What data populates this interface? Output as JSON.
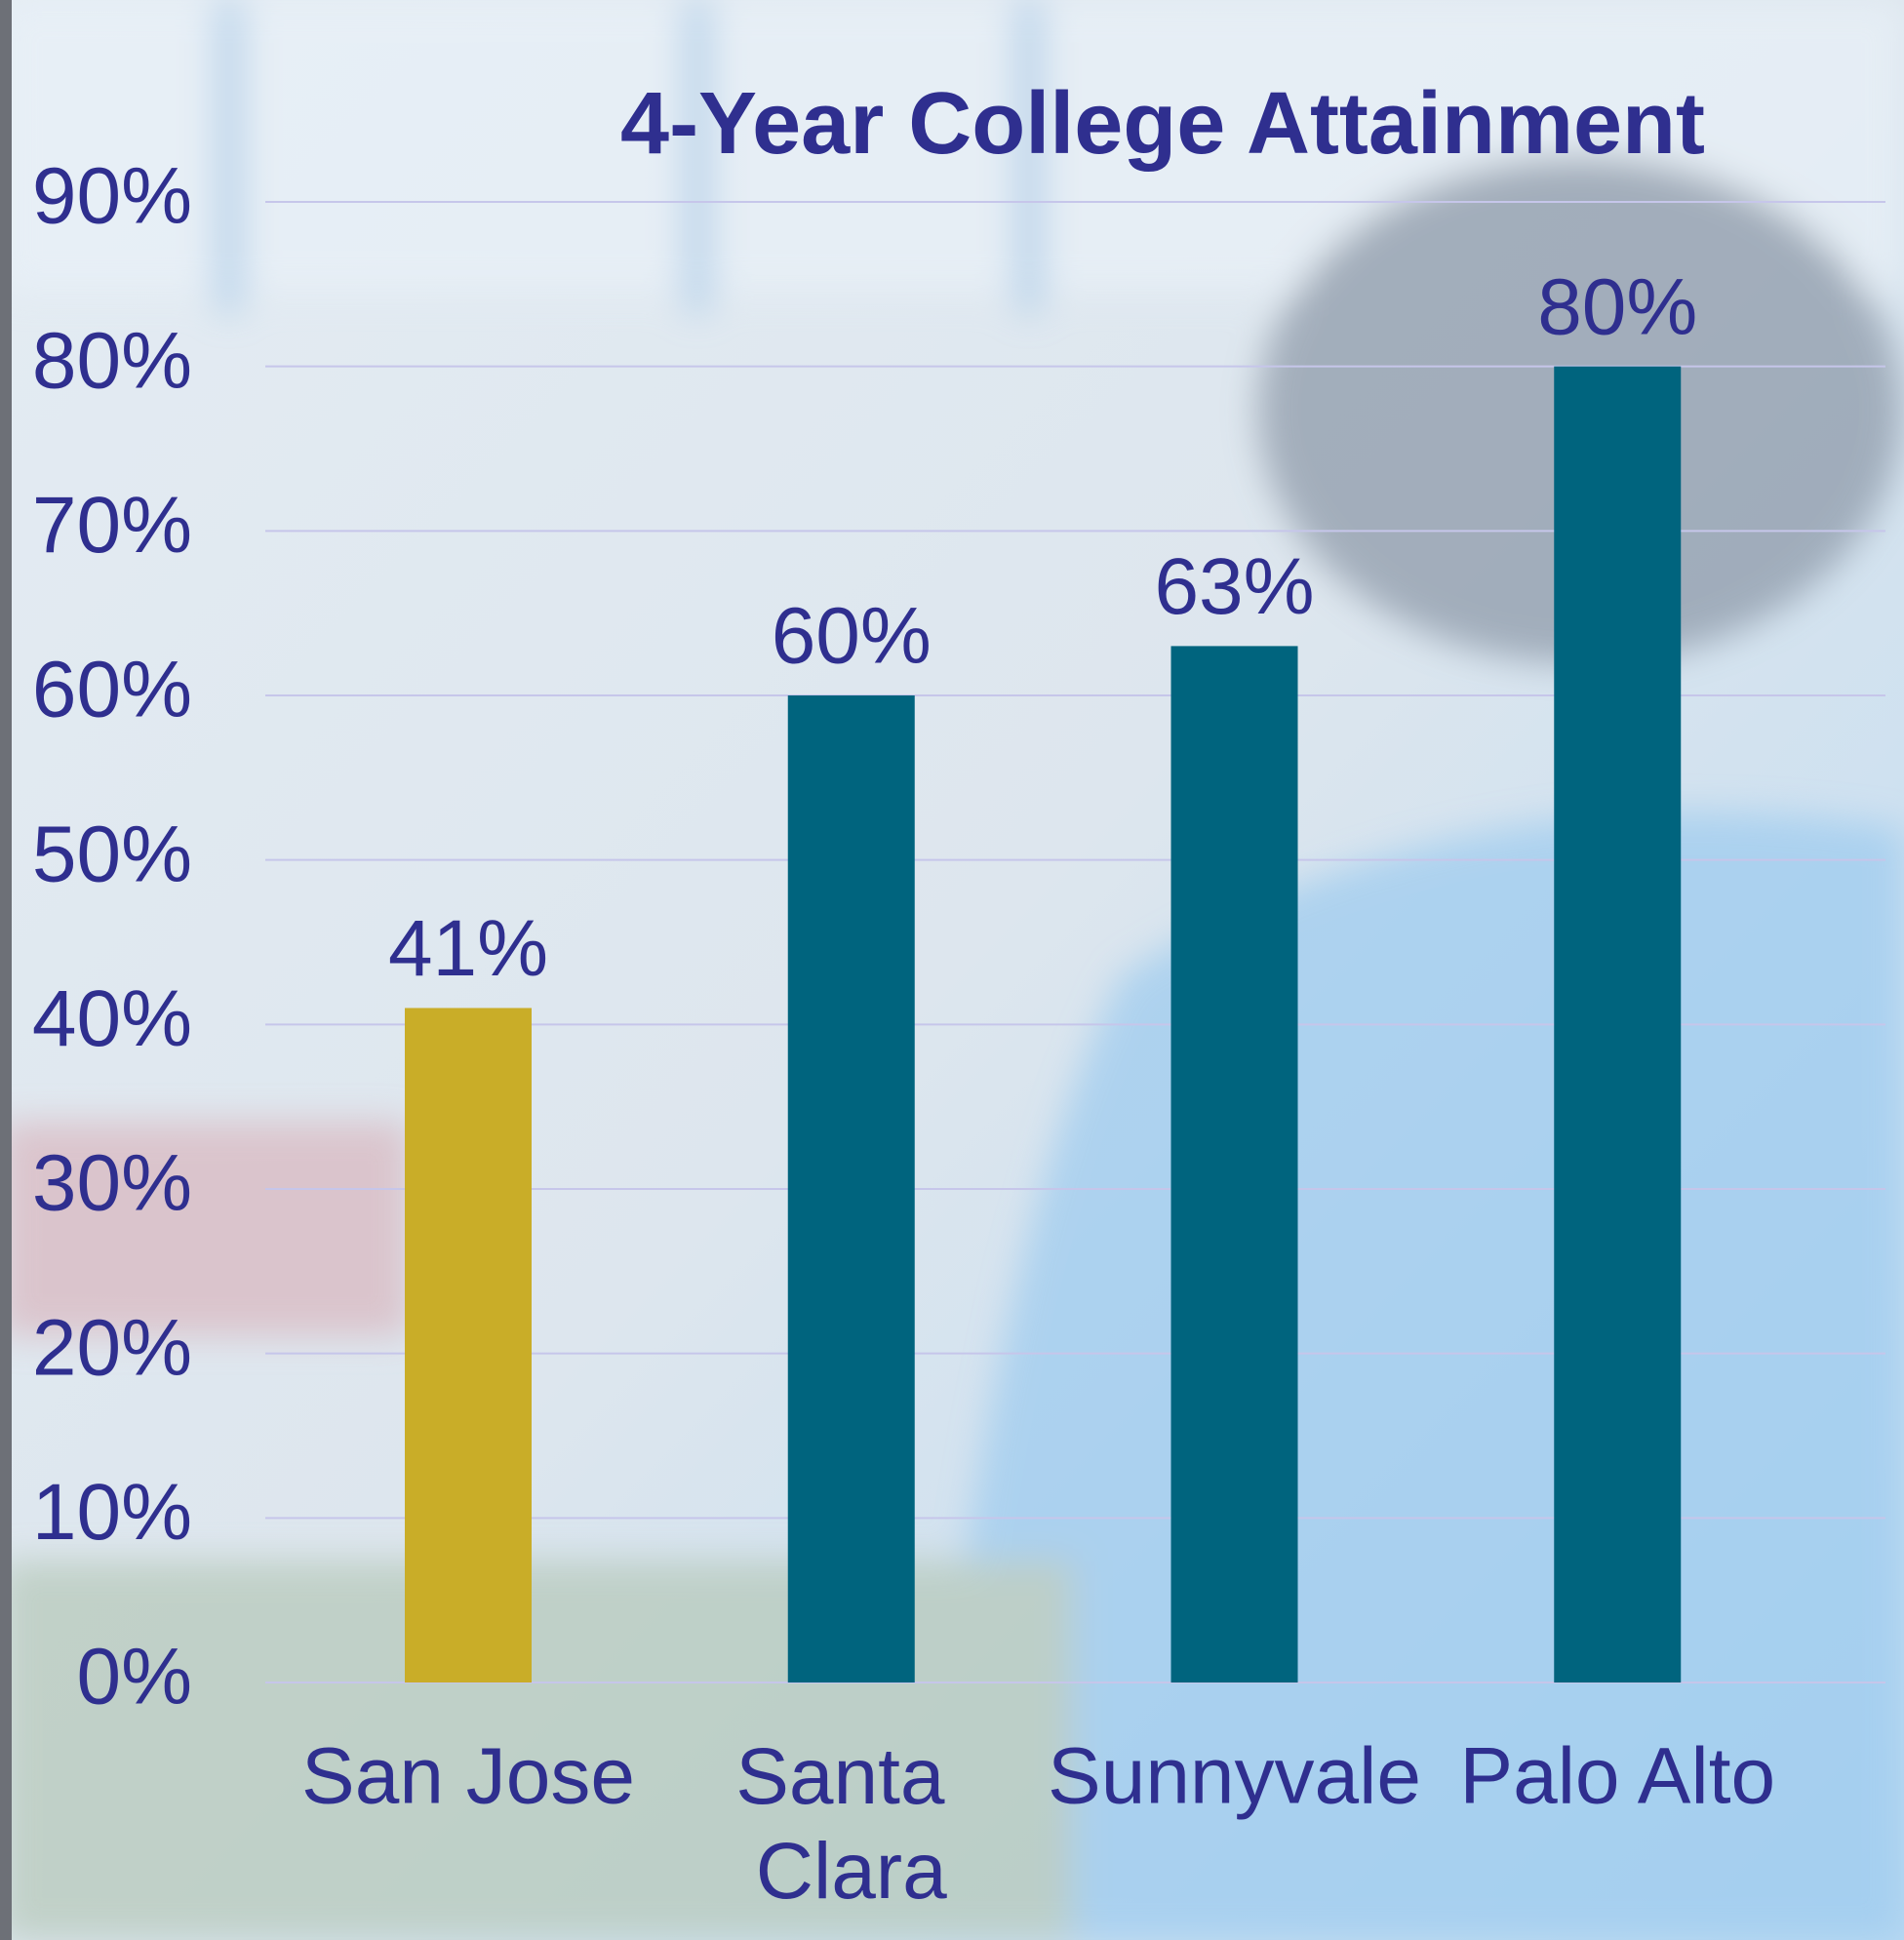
{
  "chart_data": {
    "type": "bar",
    "title": "4-Year College Attainment",
    "categories": [
      "San Jose",
      "Santa Clara",
      "Sunnyvale",
      "Palo Alto"
    ],
    "values": [
      41,
      60,
      63,
      80
    ],
    "value_labels": [
      "41%",
      "60%",
      "63%",
      "80%"
    ],
    "colors": [
      "#c9ad28",
      "#00647e",
      "#00647e",
      "#00647e"
    ],
    "ylim": [
      0,
      90
    ],
    "yticks": [
      {
        "value": 0,
        "label": "0%"
      },
      {
        "value": 10,
        "label": "10%"
      },
      {
        "value": 20,
        "label": "20%"
      },
      {
        "value": 30,
        "label": "30%"
      },
      {
        "value": 40,
        "label": "40%"
      },
      {
        "value": 50,
        "label": "50%"
      },
      {
        "value": 60,
        "label": "60%"
      },
      {
        "value": 70,
        "label": "70%"
      },
      {
        "value": 80,
        "label": "80%"
      },
      {
        "value": 90,
        "label": "90%"
      }
    ],
    "grid": true
  }
}
